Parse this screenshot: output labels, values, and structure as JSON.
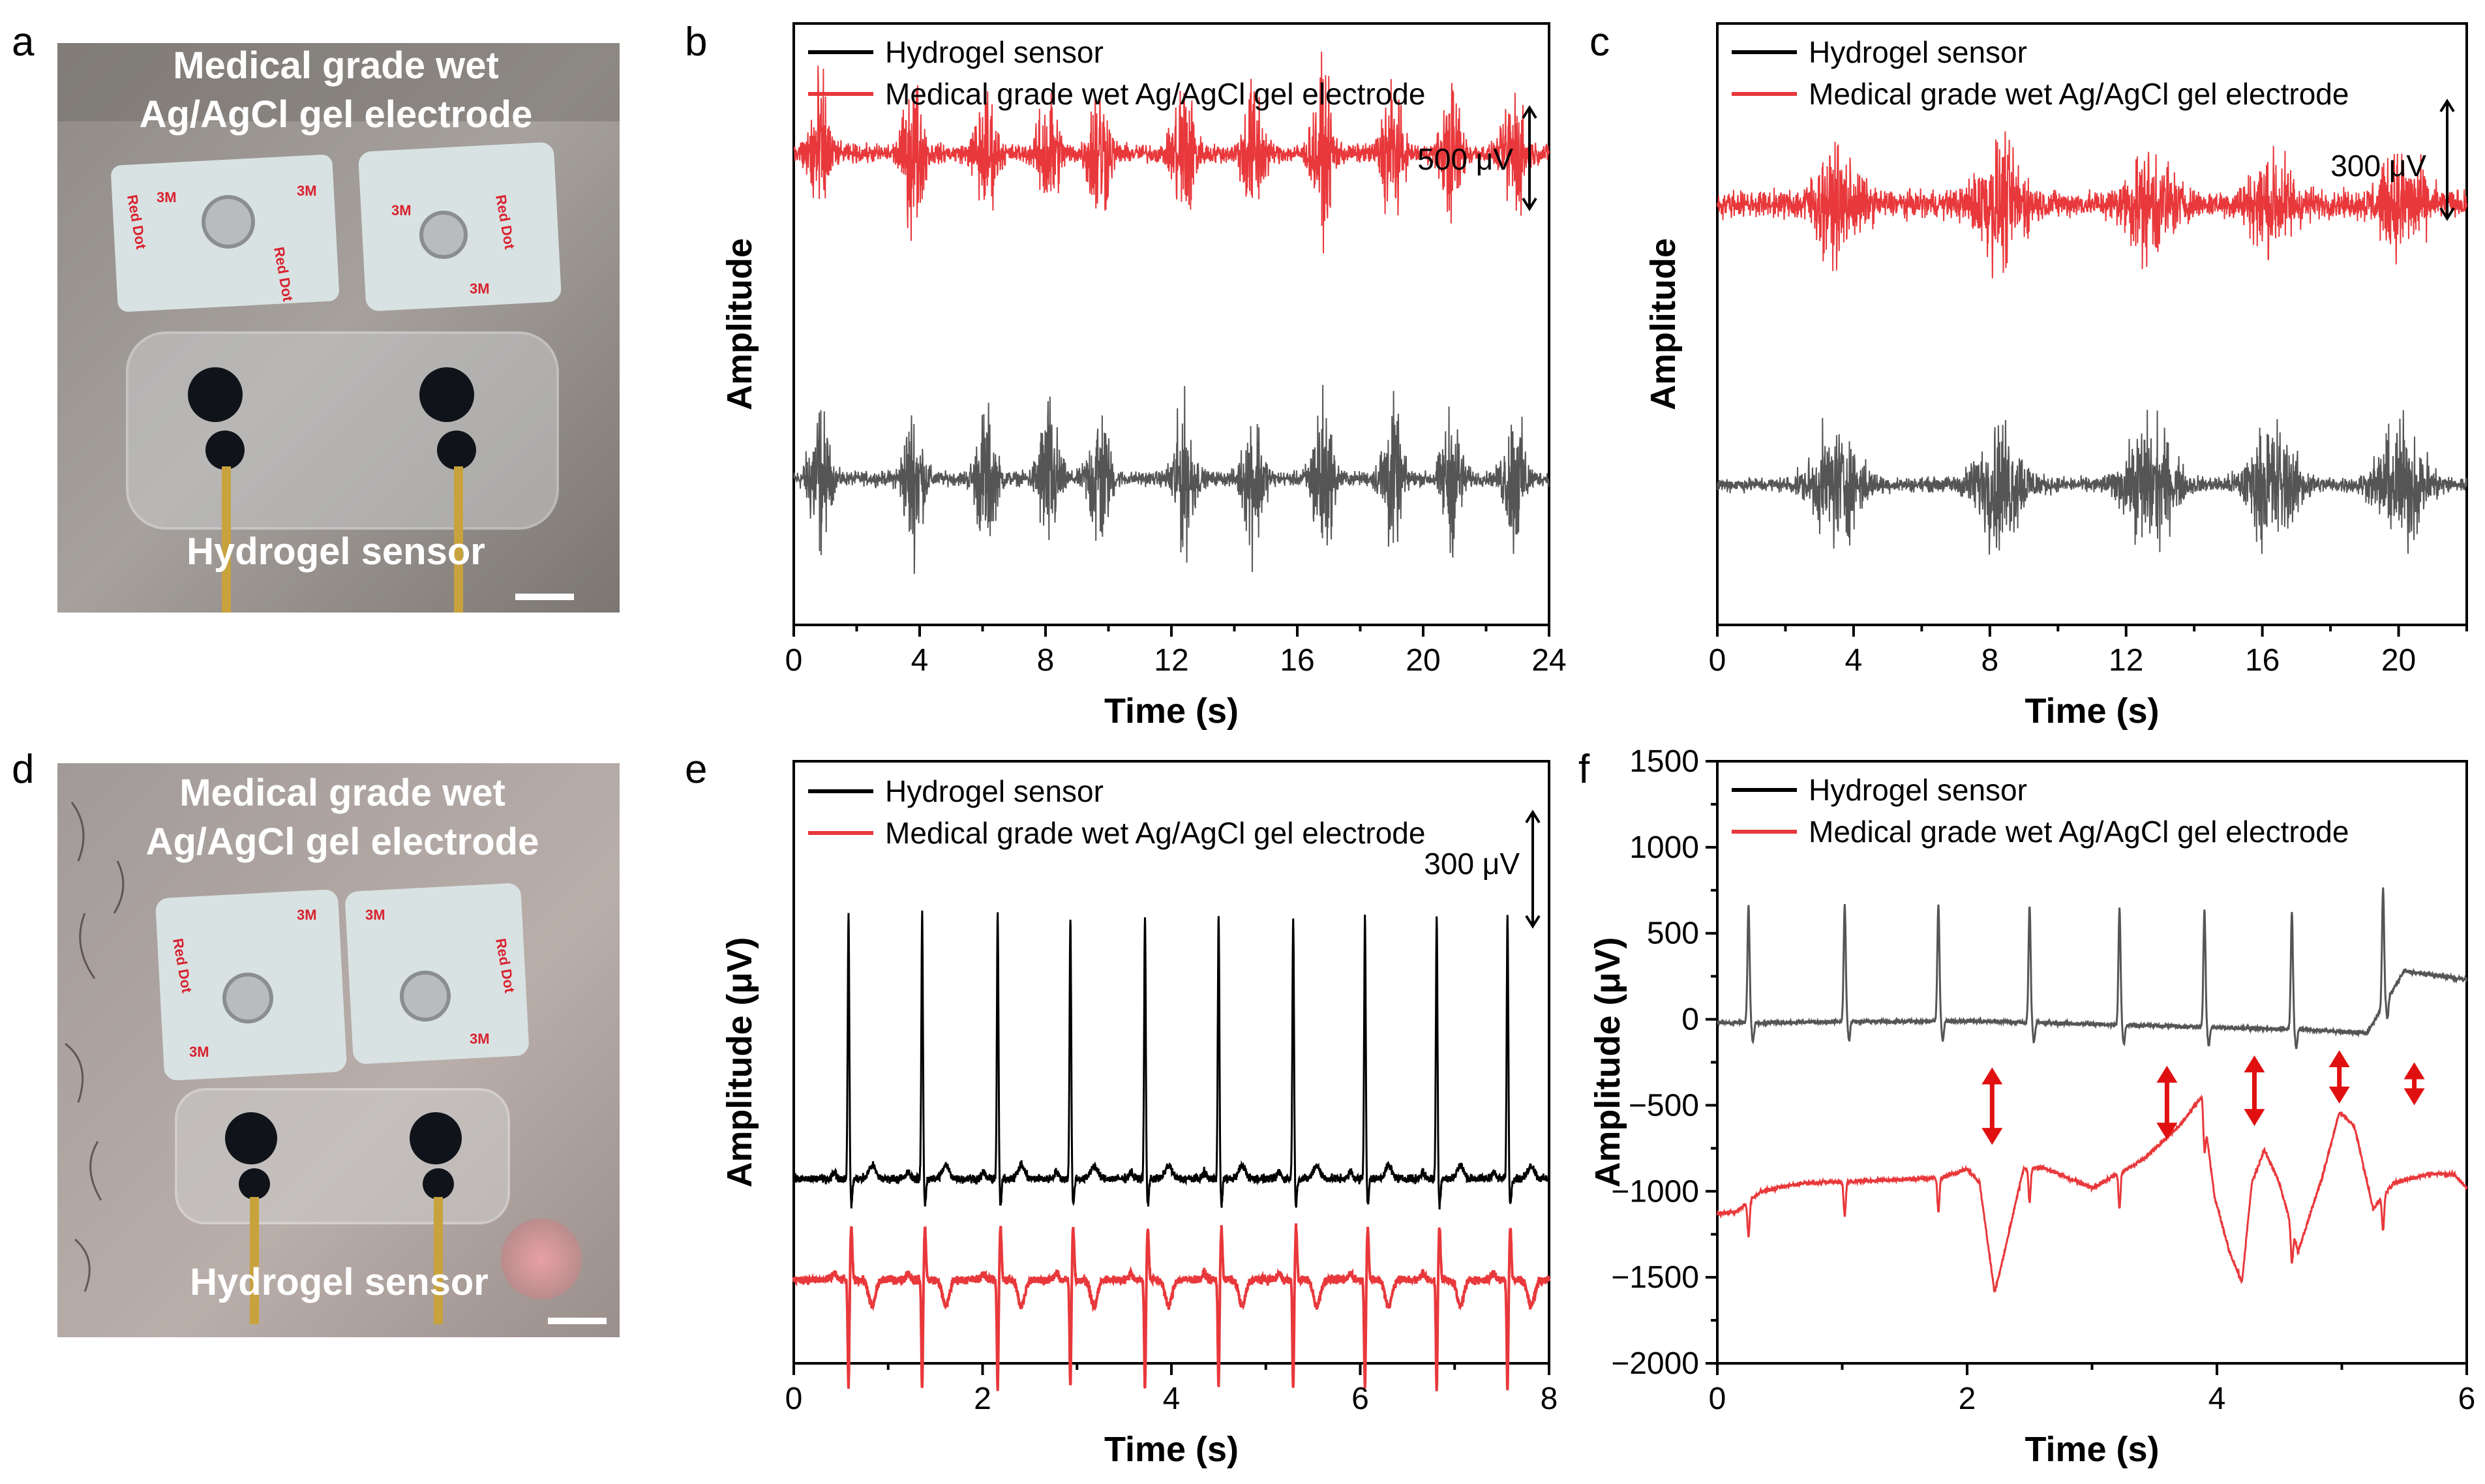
{
  "panel_letters": [
    "a",
    "b",
    "c",
    "d",
    "e",
    "f"
  ],
  "photo_a": {
    "top_label_1": "Medical grade wet",
    "top_label_2": "Ag/AgCl gel electrode",
    "bottom_label": "Hydrogel sensor",
    "pad_text": "Red Dot",
    "pad_brand": "3M"
  },
  "photo_d": {
    "top_label_1": "Medical grade wet",
    "top_label_2": "Ag/AgCl gel electrode",
    "bottom_label": "Hydrogel sensor",
    "pad_text": "Red Dot",
    "pad_brand": "3M"
  },
  "colors": {
    "hydrogel_b": "#555555",
    "hydrogel_e": "#000000",
    "electrode": "#e8383b",
    "arrow": "#e01010"
  },
  "chart_data": [
    {
      "panel": "b",
      "type": "line",
      "xlabel": "Time (s)",
      "ylabel": "Amplitude",
      "xlim": [
        0,
        24
      ],
      "xticks": [
        "0",
        "4",
        "8",
        "12",
        "16",
        "20",
        "24"
      ],
      "legend": [
        "Hydrogel sensor",
        "Medical grade wet Ag/AgCl gel electrode"
      ],
      "scale_bar": "500 μV",
      "burst_times_s": [
        0.8,
        3.8,
        6.1,
        8.1,
        9.7,
        12.4,
        14.6,
        16.8,
        19.0,
        20.9,
        22.9
      ],
      "series": [
        {
          "name": "Hydrogel sensor",
          "offset": 0,
          "baseline_noise": 30,
          "burst_amp": [
            310,
            300,
            290,
            330,
            320,
            310,
            300,
            350,
            300,
            280,
            300
          ]
        },
        {
          "name": "Medical grade wet Ag/AgCl gel electrode",
          "offset": 1000,
          "baseline_noise": 40,
          "burst_amp": [
            320,
            310,
            260,
            260,
            310,
            330,
            300,
            300,
            290,
            260,
            280
          ]
        }
      ]
    },
    {
      "panel": "c",
      "type": "line",
      "xlabel": "Time (s)",
      "ylabel": "Amplitude",
      "xlim": [
        0,
        22
      ],
      "xticks": [
        "0",
        "4",
        "8",
        "12",
        "16",
        "20"
      ],
      "legend": [
        "Hydrogel sensor",
        "Medical grade wet Ag/AgCl gel electrode"
      ],
      "scale_bar": "300 μV",
      "burst_times_s": [
        3.5,
        8.3,
        12.7,
        16.3,
        20.1
      ],
      "series": [
        {
          "name": "Hydrogel sensor",
          "offset": 0,
          "baseline_noise": 25,
          "burst_amp": [
            190,
            200,
            210,
            200,
            200
          ]
        },
        {
          "name": "Medical grade wet Ag/AgCl gel electrode",
          "offset": 700,
          "baseline_noise": 45,
          "burst_amp": [
            150,
            180,
            160,
            140,
            140
          ]
        }
      ]
    },
    {
      "panel": "e",
      "type": "line",
      "xlabel": "Time (s)",
      "ylabel": "Amplitude (μV)",
      "xlim": [
        0,
        8
      ],
      "xticks": [
        "0",
        "2",
        "4",
        "6",
        "8"
      ],
      "legend": [
        "Hydrogel sensor",
        "Medical grade wet Ag/AgCl gel electrode"
      ],
      "scale_bar": "300 μV",
      "beat_times_s": [
        0.58,
        1.36,
        2.16,
        2.93,
        3.72,
        4.5,
        5.29,
        6.05,
        6.81,
        7.56
      ],
      "series": [
        {
          "name": "Hydrogel sensor",
          "offset": 0,
          "r_peak": 600
        },
        {
          "name": "Medical grade wet Ag/AgCl gel electrode",
          "offset": -230,
          "r_peak": -250
        }
      ]
    },
    {
      "panel": "f",
      "type": "line",
      "xlabel": "Time (s)",
      "ylabel": "Amplitude (μV)",
      "xlim": [
        0,
        6
      ],
      "ylim": [
        -2000,
        1500
      ],
      "xticks": [
        "0",
        "2",
        "4",
        "6"
      ],
      "yticks": [
        "1500",
        "1000",
        "500",
        "0",
        "−500",
        "−1000",
        "−1500",
        "−2000"
      ],
      "legend": [
        "Hydrogel sensor",
        "Medical grade wet Ag/AgCl gel electrode"
      ],
      "beat_times_s": [
        0.25,
        1.02,
        1.77,
        2.5,
        3.22,
        3.9,
        4.6,
        5.33
      ],
      "arrow_times_s": [
        2.2,
        3.6,
        4.3,
        4.98,
        5.58
      ],
      "series": [
        {
          "name": "Hydrogel sensor",
          "r_peak": 680,
          "baseline": [
            [
              0,
              -20
            ],
            [
              2.0,
              -10
            ],
            [
              4.7,
              -60
            ],
            [
              5.2,
              -80
            ],
            [
              5.5,
              280
            ],
            [
              5.8,
              250
            ],
            [
              6.0,
              230
            ]
          ]
        },
        {
          "name": "Medical grade wet Ag/AgCl gel electrode",
          "baseline": [
            [
              0,
              -1130
            ],
            [
              0.15,
              -1120
            ],
            [
              0.35,
              -1000
            ],
            [
              0.7,
              -950
            ],
            [
              1.2,
              -940
            ],
            [
              1.8,
              -920
            ],
            [
              2.0,
              -870
            ],
            [
              2.1,
              -950
            ],
            [
              2.22,
              -1590
            ],
            [
              2.3,
              -1350
            ],
            [
              2.45,
              -870
            ],
            [
              2.6,
              -860
            ],
            [
              3.0,
              -980
            ],
            [
              3.4,
              -820
            ],
            [
              3.7,
              -620
            ],
            [
              3.88,
              -450
            ],
            [
              3.98,
              -1030
            ],
            [
              4.1,
              -1350
            ],
            [
              4.2,
              -1530
            ],
            [
              4.28,
              -950
            ],
            [
              4.38,
              -760
            ],
            [
              4.5,
              -950
            ],
            [
              4.65,
              -1350
            ],
            [
              4.85,
              -900
            ],
            [
              4.98,
              -540
            ],
            [
              5.1,
              -620
            ],
            [
              5.25,
              -1100
            ],
            [
              5.42,
              -950
            ],
            [
              5.7,
              -900
            ],
            [
              5.9,
              -900
            ],
            [
              6.0,
              -980
            ]
          ]
        }
      ]
    }
  ]
}
